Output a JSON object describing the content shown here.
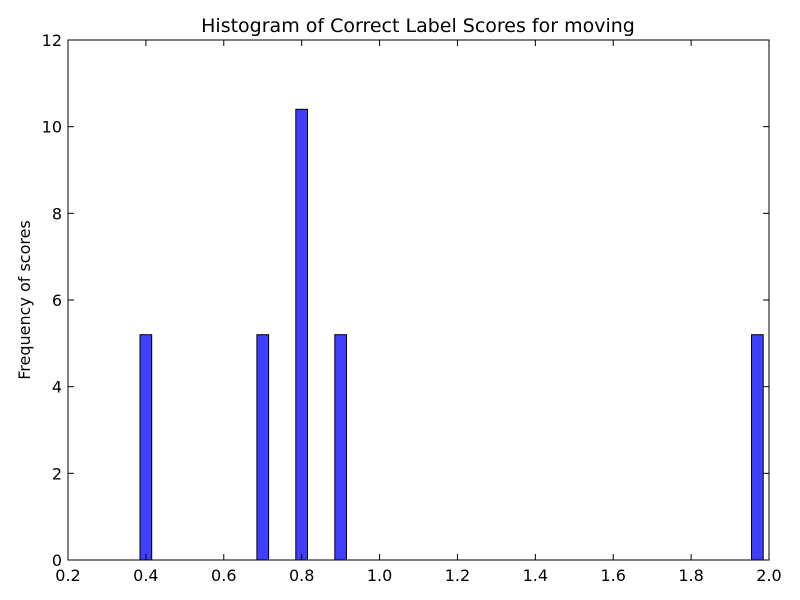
{
  "chart_data": {
    "type": "bar",
    "title": "Histogram of Correct Label Scores for moving",
    "xlabel": "",
    "ylabel": "Frequency of scores",
    "xlim": [
      0.2,
      2.0
    ],
    "ylim": [
      0,
      12
    ],
    "x_ticks": [
      "0.2",
      "0.4",
      "0.6",
      "0.8",
      "1.0",
      "1.2",
      "1.4",
      "1.6",
      "1.8",
      "2.0"
    ],
    "y_ticks": [
      "0",
      "2",
      "4",
      "6",
      "8",
      "10",
      "12"
    ],
    "bin_width": 0.03,
    "bars": [
      {
        "x": 0.4,
        "value": 5.2
      },
      {
        "x": 0.7,
        "value": 5.2
      },
      {
        "x": 0.8,
        "value": 10.4
      },
      {
        "x": 0.9,
        "value": 5.2
      },
      {
        "x": 1.97,
        "value": 5.2
      }
    ],
    "bar_color": "#3f3fff",
    "edge_color": "#000000",
    "grid": false
  }
}
